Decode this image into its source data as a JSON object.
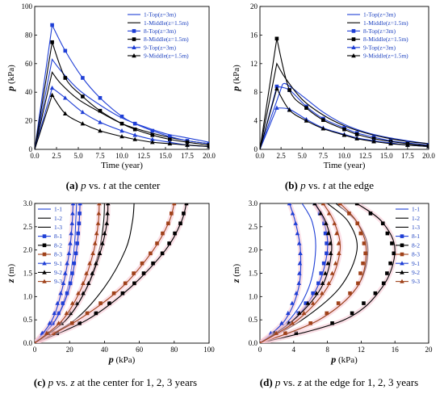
{
  "chart_data": [
    {
      "type": "line",
      "caption": {
        "label": "(a)",
        "text": "p vs. t at the center"
      },
      "xlabel": "Time (year)",
      "ylabel": "p (kPa)",
      "xlim": [
        0,
        20
      ],
      "ylim": [
        0,
        100
      ],
      "xticks": [
        "0.0",
        "2.5",
        "5.0",
        "7.5",
        "10.0",
        "12.5",
        "15.0",
        "17.5",
        "20.0"
      ],
      "yticks": [
        "0",
        "20",
        "40",
        "60",
        "80",
        "100"
      ],
      "legend_position": "top-right",
      "series": [
        {
          "name": "1-Top(z=3m)",
          "color": "#1f3fd6",
          "marker": "none",
          "x": [
            0,
            2,
            3,
            5,
            7.5,
            10,
            12.5,
            15,
            17.5,
            20
          ],
          "y": [
            0,
            63,
            55,
            42,
            31,
            22,
            16,
            11,
            8,
            5
          ]
        },
        {
          "name": "1-Middle(z=1.5m)",
          "color": "#000000",
          "marker": "none",
          "x": [
            0,
            2,
            3,
            5,
            7.5,
            10,
            12.5,
            15,
            17.5,
            20
          ],
          "y": [
            0,
            54,
            46,
            35,
            26,
            18,
            13,
            9,
            6,
            4
          ]
        },
        {
          "name": "8-Top(z=3m)",
          "color": "#1f3fd6",
          "marker": "square",
          "x": [
            0,
            2,
            3.5,
            5.5,
            7.5,
            10,
            11.5,
            13.5,
            15.5,
            17.5,
            20
          ],
          "y": [
            0,
            87,
            69,
            50,
            36,
            23,
            18,
            13,
            9,
            6,
            4
          ]
        },
        {
          "name": "8-Middle(z=1.5m)",
          "color": "#000000",
          "marker": "square",
          "x": [
            0,
            2,
            3.5,
            5.5,
            7.5,
            10,
            11.5,
            13.5,
            15.5,
            17.5,
            20
          ],
          "y": [
            0,
            75,
            50,
            37,
            27,
            18,
            14,
            10,
            7,
            5,
            3
          ]
        },
        {
          "name": "9-Top(z=3m)",
          "color": "#1f3fd6",
          "marker": "triangle",
          "x": [
            0,
            2,
            3.5,
            5.5,
            7.5,
            10,
            11.5,
            13.5,
            15.5,
            17.5,
            20
          ],
          "y": [
            0,
            43,
            36,
            26,
            19,
            13,
            10,
            7,
            5,
            3,
            2
          ]
        },
        {
          "name": "9-Middle(z=1.5m)",
          "color": "#000000",
          "marker": "triangle",
          "x": [
            0,
            2,
            3.5,
            5.5,
            7.5,
            10,
            11.5,
            13.5,
            15.5,
            17.5,
            20
          ],
          "y": [
            0,
            38,
            25,
            18,
            13,
            9,
            7,
            5,
            4,
            3,
            2
          ]
        }
      ]
    },
    {
      "type": "line",
      "caption": {
        "label": "(b)",
        "text": "p vs. t at the edge"
      },
      "xlabel": "Time (year)",
      "ylabel": "p (kPa)",
      "xlim": [
        0,
        20
      ],
      "ylim": [
        0,
        20
      ],
      "xticks": [
        "0.0",
        "2.5",
        "5.0",
        "7.5",
        "10.0",
        "12.5",
        "15.0",
        "17.5",
        "20.0"
      ],
      "yticks": [
        "0",
        "4",
        "8",
        "12",
        "16",
        "20"
      ],
      "legend_position": "top-right",
      "series": [
        {
          "name": "1-Top(z=3m)",
          "color": "#1f3fd6",
          "marker": "none",
          "x": [
            0,
            2.5,
            3,
            5,
            7.5,
            10,
            12.5,
            15,
            17.5,
            20
          ],
          "y": [
            0,
            8.5,
            9.2,
            7.5,
            5.2,
            3.5,
            2.4,
            1.7,
            1.2,
            0.8
          ]
        },
        {
          "name": "1-Middle(z=1.5m)",
          "color": "#000000",
          "marker": "none",
          "x": [
            0,
            2,
            3,
            5,
            7.5,
            10,
            12.5,
            15,
            17.5,
            20
          ],
          "y": [
            0,
            12,
            10,
            7,
            4.8,
            3.3,
            2.3,
            1.6,
            1.1,
            0.8
          ]
        },
        {
          "name": "8-Top(z=3m)",
          "color": "#1f3fd6",
          "marker": "square",
          "x": [
            0,
            2,
            3.5,
            5.5,
            7.5,
            10,
            11.5,
            13.5,
            15.5,
            17.5,
            20
          ],
          "y": [
            0,
            8.8,
            8.3,
            6,
            4.3,
            3,
            2.3,
            1.7,
            1.2,
            0.9,
            0.6
          ]
        },
        {
          "name": "8-Middle(z=1.5m)",
          "color": "#000000",
          "marker": "square",
          "x": [
            0,
            2,
            3.5,
            5.5,
            7.5,
            10,
            11.5,
            13.5,
            15.5,
            17.5,
            20
          ],
          "y": [
            0,
            15.5,
            8.3,
            5.8,
            4.1,
            2.8,
            2.1,
            1.5,
            1.1,
            0.8,
            0.5
          ]
        },
        {
          "name": "9-Top(z=3m)",
          "color": "#1f3fd6",
          "marker": "triangle",
          "x": [
            0,
            2,
            3.5,
            5.5,
            7.5,
            10,
            11.5,
            13.5,
            15.5,
            17.5,
            20
          ],
          "y": [
            0,
            5.8,
            5.6,
            4.2,
            3,
            2.1,
            1.6,
            1.2,
            0.9,
            0.6,
            0.4
          ]
        },
        {
          "name": "9-Middle(z=1.5m)",
          "color": "#000000",
          "marker": "triangle",
          "x": [
            0,
            2,
            3.5,
            5.5,
            7.5,
            10,
            11.5,
            13.5,
            15.5,
            17.5,
            20
          ],
          "y": [
            0,
            8.5,
            5.5,
            4,
            2.9,
            2,
            1.5,
            1.1,
            0.8,
            0.6,
            0.4
          ]
        }
      ]
    },
    {
      "type": "line",
      "caption": {
        "label": "(c)",
        "text": "p vs. z at the center for 1, 2, 3 years"
      },
      "xlabel": "p (kPa)",
      "ylabel": "z (m)",
      "xlim": [
        0,
        100
      ],
      "ylim": [
        0,
        3
      ],
      "xticks": [
        "0",
        "20",
        "40",
        "60",
        "80",
        "100"
      ],
      "yticks": [
        "0.0",
        "0.5",
        "1.0",
        "1.5",
        "2.0",
        "2.5",
        "3.0"
      ],
      "legend_position": "top-left",
      "series": [
        {
          "name": "1-1",
          "color": "#1f3fd6",
          "marker": "none",
          "x": [
            0,
            12,
            19,
            22.5,
            23.5,
            24
          ],
          "y": [
            0,
            0.5,
            1.2,
            2,
            2.6,
            3
          ]
        },
        {
          "name": "1-2",
          "color": "#000000",
          "marker": "none",
          "x": [
            0,
            18,
            30,
            37,
            39.5,
            40
          ],
          "y": [
            0,
            0.5,
            1.2,
            2,
            2.6,
            3
          ]
        },
        {
          "name": "1-3",
          "color": "#000000",
          "marker": "none",
          "x": [
            0,
            23,
            40,
            52,
            56,
            57
          ],
          "y": [
            0,
            0.5,
            1.2,
            2,
            2.6,
            3
          ]
        },
        {
          "name": "8-1",
          "color": "#1f3fd6",
          "marker": "square",
          "x": [
            0,
            12,
            20,
            24,
            25.5,
            26
          ],
          "y": [
            0,
            0.5,
            1.2,
            2,
            2.6,
            3
          ]
        },
        {
          "name": "8-2",
          "color": "#000000",
          "marker": "square",
          "x": [
            0,
            30,
            55,
            75,
            84,
            87
          ],
          "y": [
            0,
            0.5,
            1.2,
            2,
            2.6,
            3
          ]
        },
        {
          "name": "8-3",
          "color": "#a0421a",
          "marker": "square",
          "x": [
            0,
            25,
            50,
            68,
            77,
            80
          ],
          "y": [
            0,
            0.5,
            1.2,
            2,
            2.6,
            3
          ]
        },
        {
          "name": "9-1",
          "color": "#1f3fd6",
          "marker": "triangle",
          "x": [
            0,
            10,
            16,
            20,
            21.5,
            22
          ],
          "y": [
            0,
            0.5,
            1.2,
            2,
            2.6,
            3
          ]
        },
        {
          "name": "9-2",
          "color": "#000000",
          "marker": "triangle",
          "x": [
            0,
            18,
            30,
            38,
            41.5,
            42
          ],
          "y": [
            0,
            0.5,
            1.2,
            2,
            2.6,
            3
          ]
        },
        {
          "name": "9-3",
          "color": "#a0421a",
          "marker": "triangle",
          "x": [
            0,
            16,
            27,
            34,
            36.5,
            37
          ],
          "y": [
            0,
            0.5,
            1.2,
            2,
            2.6,
            3
          ]
        }
      ]
    },
    {
      "type": "line",
      "caption": {
        "label": "(d)",
        "text": "p vs. z at the edge for 1, 2, 3 years"
      },
      "xlabel": "p (kPa)",
      "ylabel": "z (m)",
      "xlim": [
        0,
        20
      ],
      "ylim": [
        0,
        3
      ],
      "xticks": [
        "0",
        "4",
        "8",
        "12",
        "16",
        "20"
      ],
      "yticks": [
        "0.0",
        "0.5",
        "1.0",
        "1.5",
        "2.0",
        "2.5",
        "3.0"
      ],
      "legend_position": "top-right",
      "series": [
        {
          "name": "1-1",
          "color": "#1f3fd6",
          "marker": "none",
          "x": [
            0,
            3.5,
            5.8,
            6.6,
            6.2,
            5
          ],
          "y": [
            0,
            0.5,
            1.2,
            2,
            2.6,
            3
          ]
        },
        {
          "name": "1-2",
          "color": "#000000",
          "marker": "none",
          "x": [
            0,
            5,
            9.5,
            11.5,
            10.5,
            8
          ],
          "y": [
            0,
            0.5,
            1.2,
            2,
            2.6,
            3
          ]
        },
        {
          "name": "1-3",
          "color": "#000000",
          "marker": "none",
          "x": [
            0,
            7,
            11.5,
            12.8,
            11.5,
            9
          ],
          "y": [
            0,
            0.5,
            1.2,
            2,
            2.6,
            3
          ]
        },
        {
          "name": "8-1",
          "color": "#1f3fd6",
          "marker": "square",
          "x": [
            0,
            4,
            6.8,
            8,
            7.6,
            6.5
          ],
          "y": [
            0,
            0.5,
            1.2,
            2,
            2.6,
            3
          ]
        },
        {
          "name": "8-2",
          "color": "#000000",
          "marker": "square",
          "x": [
            0,
            10,
            14.5,
            16,
            14.5,
            11.5
          ],
          "y": [
            0,
            0.5,
            1.2,
            2,
            2.6,
            3
          ]
        },
        {
          "name": "8-3",
          "color": "#a0421a",
          "marker": "square",
          "x": [
            0,
            7,
            11.5,
            12.6,
            11.5,
            9.5
          ],
          "y": [
            0,
            0.5,
            1.2,
            2,
            2.6,
            3
          ]
        },
        {
          "name": "9-1",
          "color": "#1f3fd6",
          "marker": "triangle",
          "x": [
            0,
            3,
            4.6,
            4.8,
            4.2,
            3.5
          ],
          "y": [
            0,
            0.5,
            1.2,
            2,
            2.6,
            3
          ]
        },
        {
          "name": "9-2",
          "color": "#000000",
          "marker": "triangle",
          "x": [
            0,
            4,
            7.3,
            8.5,
            7.8,
            6.5
          ],
          "y": [
            0,
            0.5,
            1.2,
            2,
            2.6,
            3
          ]
        },
        {
          "name": "9-3",
          "color": "#a0421a",
          "marker": "triangle",
          "x": [
            0,
            4.5,
            8,
            9.5,
            8.8,
            7.5
          ],
          "y": [
            0,
            0.5,
            1.2,
            2,
            2.6,
            3
          ]
        }
      ]
    }
  ]
}
